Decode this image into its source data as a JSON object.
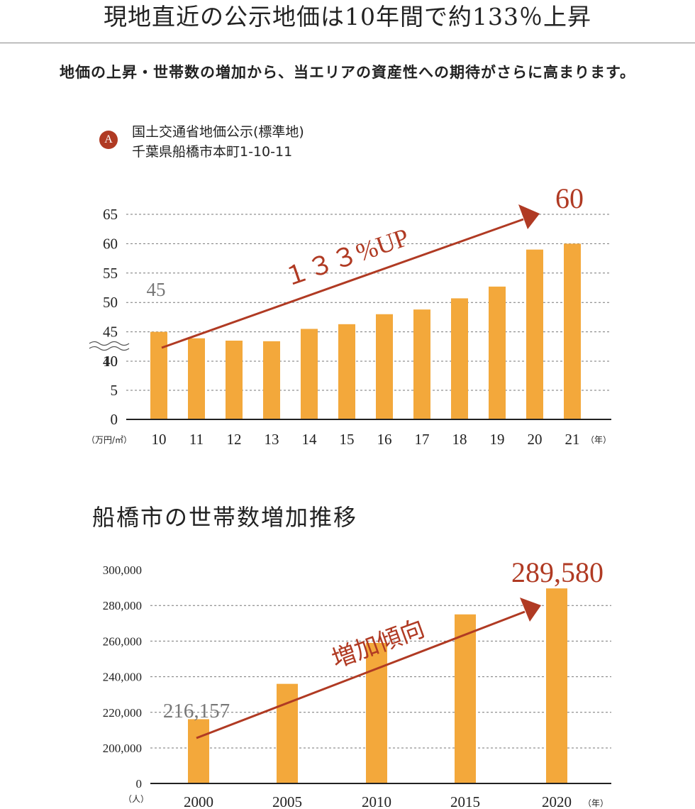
{
  "header": {
    "headline": "現地直近の公示地価は10年間で約133％上昇",
    "lead": "地価の上昇・世帯数の増加から、当エリアの資産性への期待がさらに高まります。"
  },
  "source": {
    "badge": "A",
    "line1": "国土交通省地価公示(標準地)",
    "line2": "千葉県船橋市本町1-10-11"
  },
  "section2_title": "船橋市の世帯数増加推移",
  "colors": {
    "bar": "#f3a83b",
    "accent": "#b03a23",
    "gray_label": "#777777"
  },
  "chart_data": [
    {
      "type": "bar",
      "categories": [
        "10",
        "11",
        "12",
        "13",
        "14",
        "15",
        "16",
        "17",
        "18",
        "19",
        "20",
        "21"
      ],
      "values": [
        45,
        43.9,
        43.5,
        43.4,
        45.5,
        46.3,
        48,
        48.8,
        50.7,
        52.7,
        59,
        60
      ],
      "yticks": [
        "0",
        "5",
        "10",
        "40",
        "45",
        "50",
        "55",
        "60",
        "65"
      ],
      "ylim": [
        0,
        65
      ],
      "axis_break": "10-40",
      "ylabel_unit": "（万円/㎡）",
      "xlabel_unit": "（年）",
      "annotations": {
        "first_value": "45",
        "last_value": "60",
        "trend": "１３３%UP"
      },
      "grid": true
    },
    {
      "type": "bar",
      "categories": [
        "2000",
        "2005",
        "2010",
        "2015",
        "2020"
      ],
      "values": [
        216157,
        236000,
        259000,
        275000,
        289580
      ],
      "yticks": [
        "0",
        "200,000",
        "220,000",
        "240,000",
        "260,000",
        "280,000",
        "300,000"
      ],
      "ylim": [
        0,
        300000
      ],
      "axis_break": "0-200000",
      "ylabel_unit": "（人）",
      "xlabel_unit": "（年）",
      "annotations": {
        "first_value": "216,157",
        "last_value": "289,580",
        "trend": "増加傾向"
      },
      "grid": true
    }
  ]
}
